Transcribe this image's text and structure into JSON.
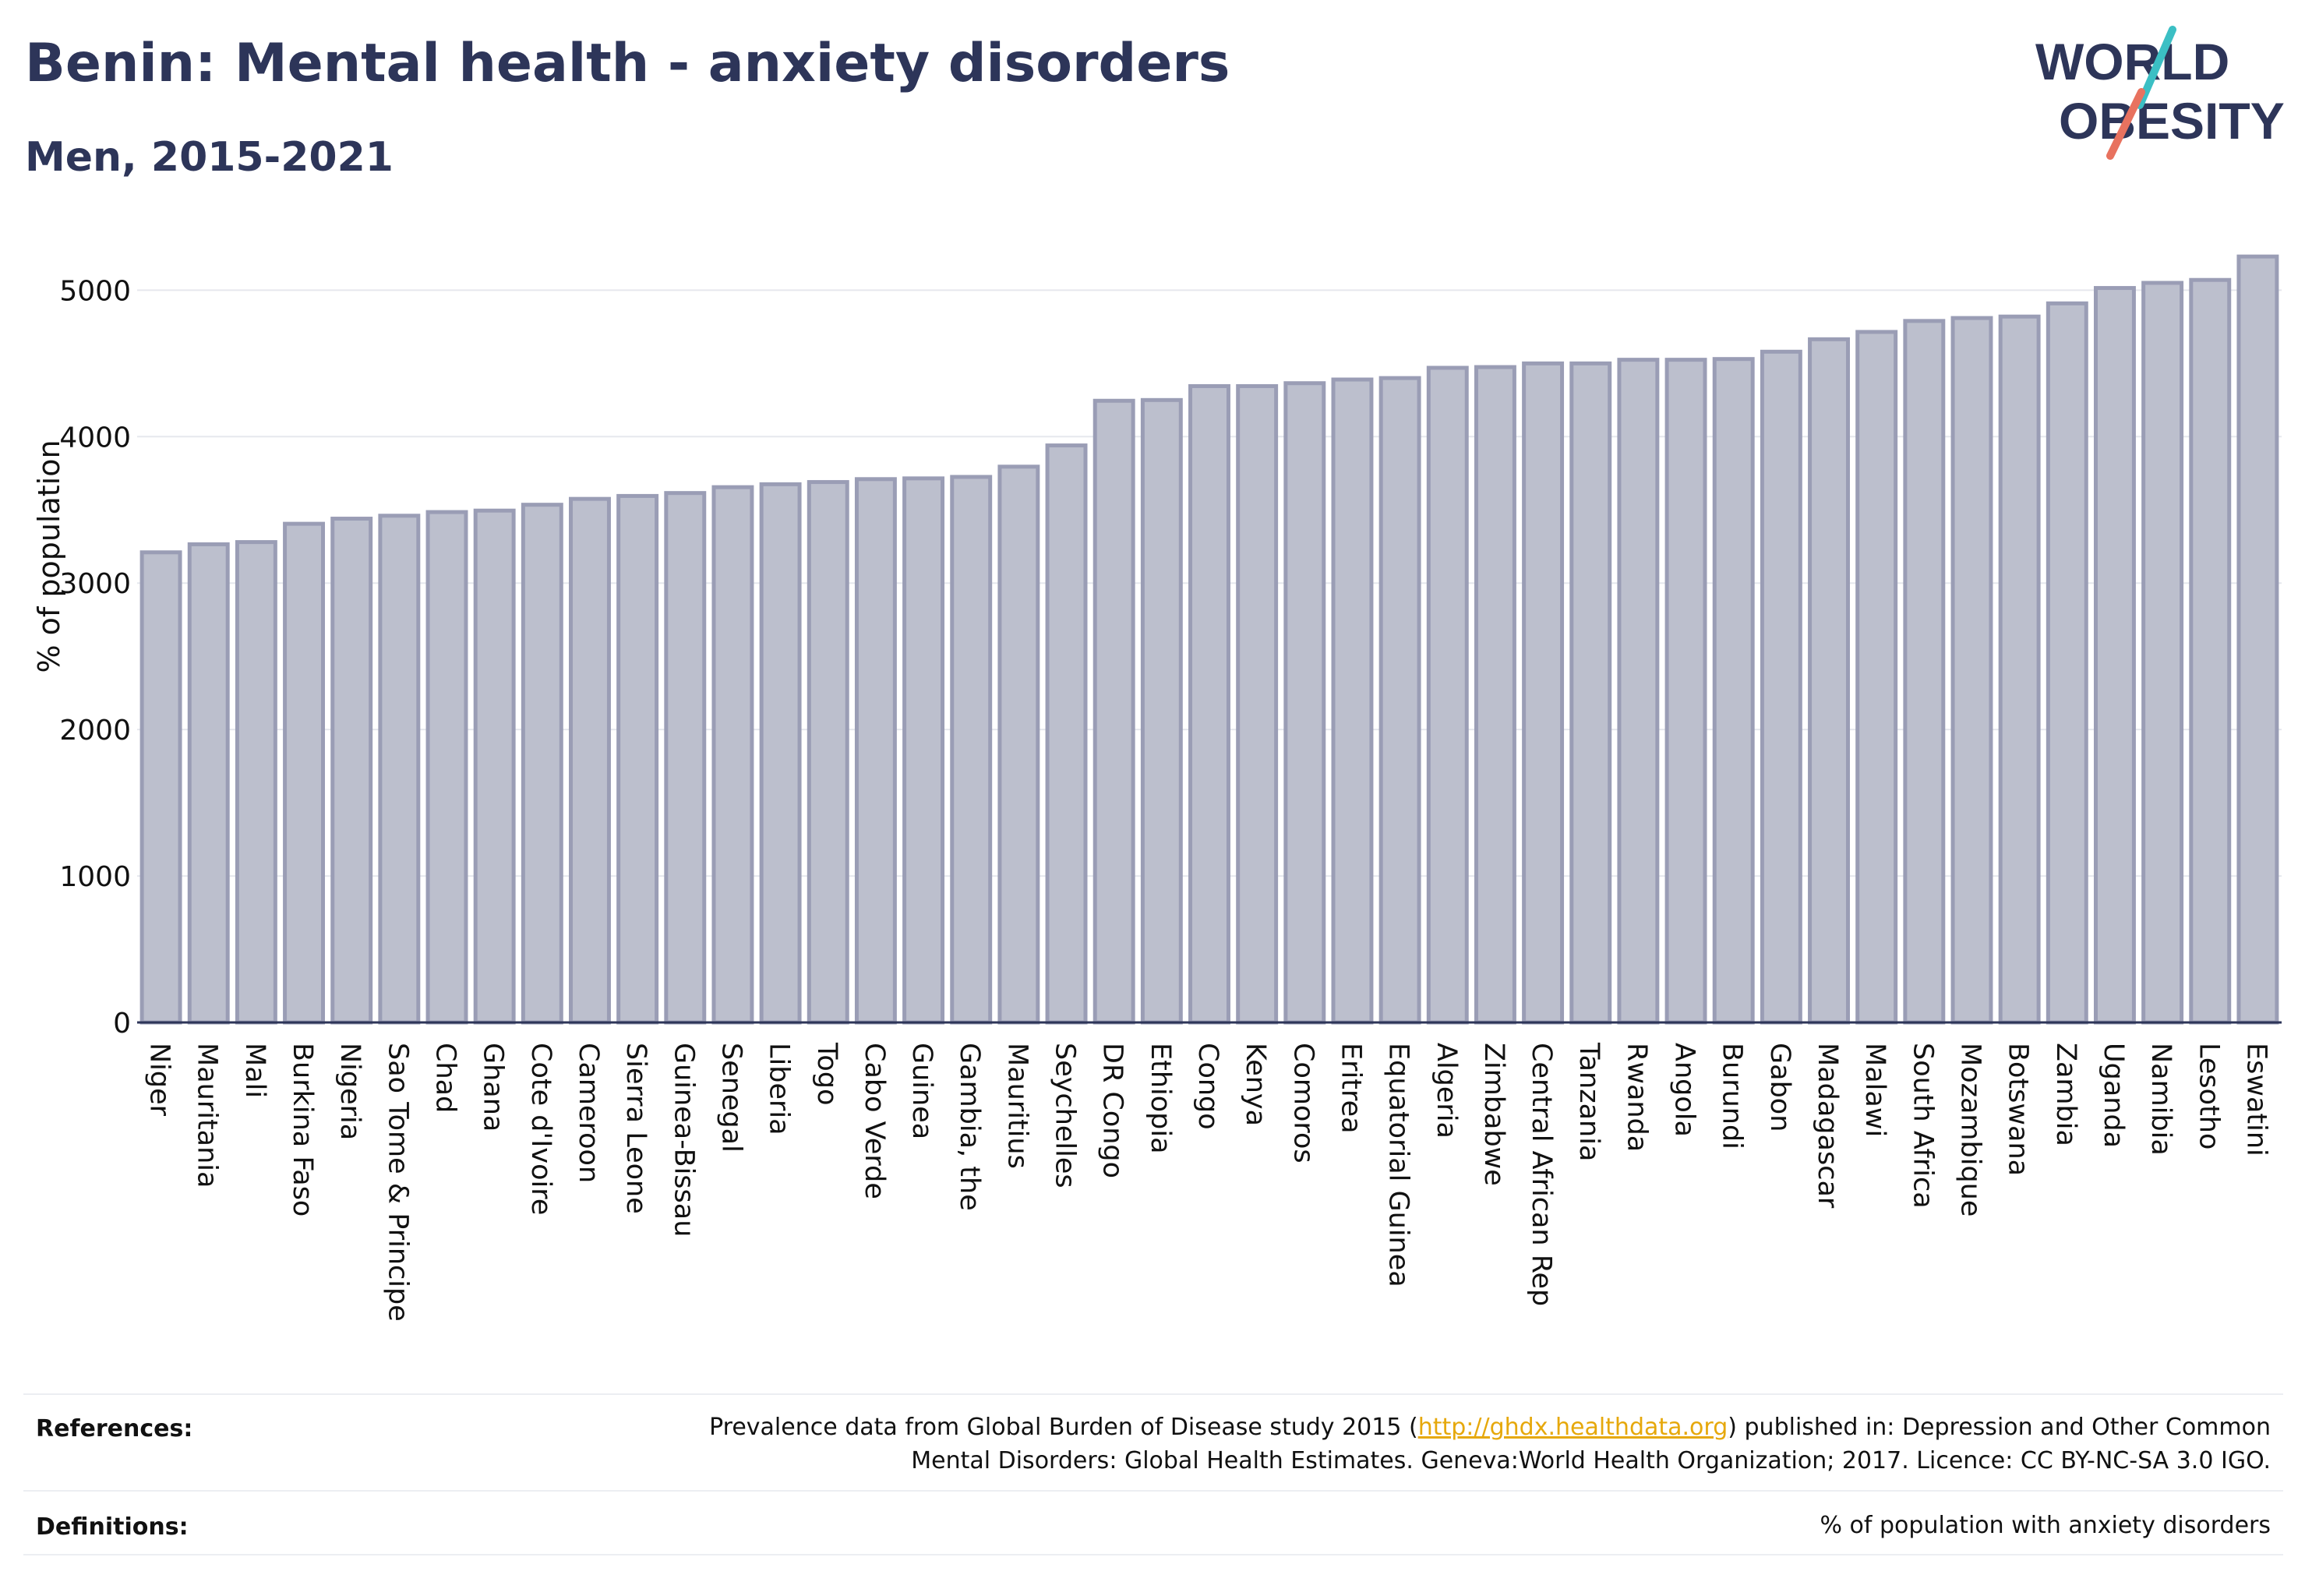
{
  "header": {
    "title": "Benin: Mental health - anxiety disorders",
    "subtitle": "Men, 2015-2021"
  },
  "logo": {
    "line1": "WORLD",
    "line2": "OBESITY",
    "slash_colors": [
      "#3bbfc4",
      "#e8725f"
    ],
    "text_color": "#2d3559"
  },
  "chart_data": {
    "type": "bar",
    "title": "",
    "xlabel": "",
    "ylabel": "% of population",
    "ylim": [
      0,
      5300
    ],
    "yticks": [
      0,
      1000,
      2000,
      3000,
      4000,
      5000
    ],
    "grid": true,
    "bar_fill": "#bcbfcd",
    "bar_stroke": "#9a9db5",
    "categories": [
      "Niger",
      "Mauritania",
      "Mali",
      "Burkina Faso",
      "Nigeria",
      "Sao Tome & Principe",
      "Chad",
      "Ghana",
      "Cote d'Ivoire",
      "Cameroon",
      "Sierra Leone",
      "Guinea-Bissau",
      "Senegal",
      "Liberia",
      "Togo",
      "Cabo Verde",
      "Guinea",
      "Gambia, the",
      "Mauritius",
      "Seychelles",
      "DR Congo",
      "Ethiopia",
      "Congo",
      "Kenya",
      "Comoros",
      "Eritrea",
      "Equatorial Guinea",
      "Algeria",
      "Zimbabwe",
      "Central African Rep",
      "Tanzania",
      "Rwanda",
      "Angola",
      "Burundi",
      "Gabon",
      "Madagascar",
      "Malawi",
      "South Africa",
      "Mozambique",
      "Botswana",
      "Zambia",
      "Uganda",
      "Namibia",
      "Lesotho",
      "Eswatini"
    ],
    "values": [
      3210,
      3265,
      3280,
      3405,
      3440,
      3460,
      3485,
      3495,
      3535,
      3575,
      3595,
      3615,
      3655,
      3675,
      3690,
      3710,
      3715,
      3725,
      3795,
      3940,
      4245,
      4250,
      4345,
      4345,
      4365,
      4390,
      4400,
      4470,
      4475,
      4500,
      4500,
      4525,
      4525,
      4530,
      4580,
      4665,
      4715,
      4790,
      4810,
      4820,
      4910,
      5015,
      5050,
      5070,
      5230
    ]
  },
  "footer": {
    "references_label": "References:",
    "references_before": "Prevalence data from Global Burden of Disease study 2015 (",
    "references_link": "http://ghdx.healthdata.org",
    "references_after": ") published in: Depression and Other Common",
    "references_line2": "Mental Disorders: Global Health Estimates. Geneva:World Health Organization; 2017. Licence: CC BY-NC-SA 3.0 IGO.",
    "definitions_label": "Definitions:",
    "definitions_text": "% of population with anxiety disorders"
  }
}
